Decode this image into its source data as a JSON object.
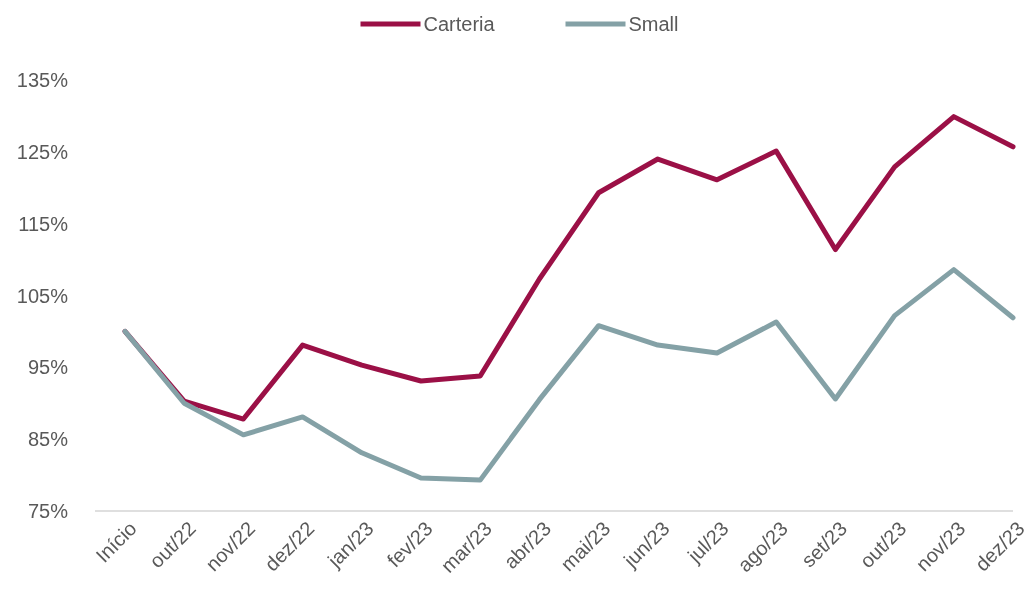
{
  "chart_data": {
    "type": "line",
    "categories": [
      "Início",
      "out/22",
      "nov/22",
      "dez/22",
      "jan/23",
      "fev/23",
      "mar/23",
      "abr/23",
      "mai/23",
      "jun/23",
      "jul/23",
      "ago/23",
      "set/23",
      "out/23",
      "nov/23",
      "dez/23"
    ],
    "series": [
      {
        "name": "Carteria",
        "color": "#9b1046",
        "values": [
          100,
          90.3,
          87.8,
          98.1,
          95.3,
          93.1,
          93.8,
          107.3,
          119.3,
          124.0,
          121.1,
          125.1,
          111.4,
          122.9,
          129.9,
          125.7
        ]
      },
      {
        "name": "Small",
        "color": "#84a1a6",
        "values": [
          100,
          90.0,
          85.6,
          88.1,
          83.1,
          79.6,
          79.3,
          90.5,
          100.8,
          98.1,
          97.0,
          101.3,
          90.6,
          102.2,
          108.6,
          101.9
        ]
      }
    ],
    "ylim": [
      75,
      135
    ],
    "yticks": [
      {
        "value": 75,
        "label": "75%"
      },
      {
        "value": 85,
        "label": "85%"
      },
      {
        "value": 95,
        "label": "95%"
      },
      {
        "value": 105,
        "label": "105%"
      },
      {
        "value": 115,
        "label": "115%"
      },
      {
        "value": 125,
        "label": "125%"
      },
      {
        "value": 135,
        "label": "135%"
      }
    ],
    "grid": false,
    "legend": "top",
    "marker": "none",
    "line_style": "solid"
  }
}
